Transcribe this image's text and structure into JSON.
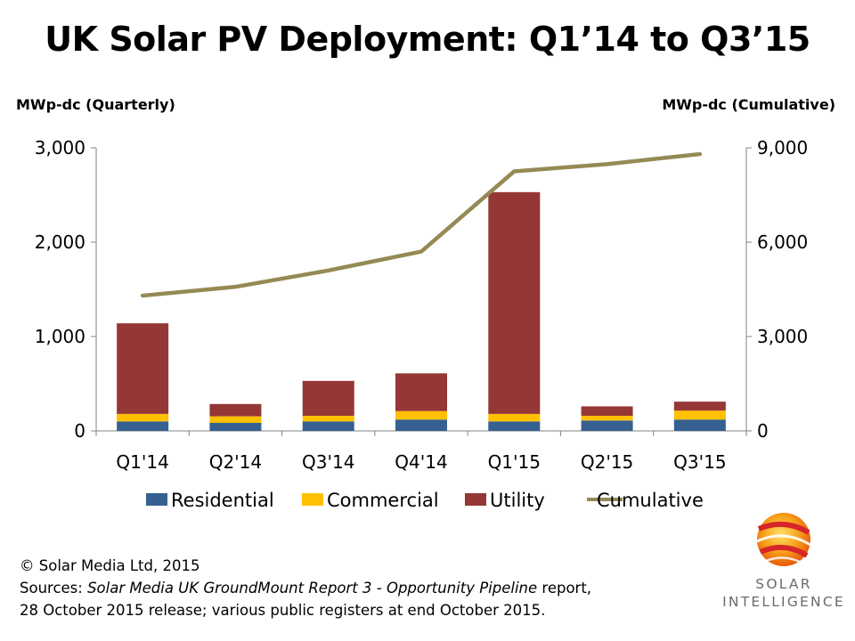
{
  "title": "UK Solar PV Deployment: Q1’14 to Q3’15",
  "chart_data": {
    "type": "bar",
    "title": "UK Solar PV Deployment: Q1’14 to Q3’15",
    "ylabel_left": "MWp-dc  (Quarterly)",
    "ylabel_right": "MWp-dc  (Cumulative)",
    "categories": [
      "Q1'14",
      "Q2'14",
      "Q3'14",
      "Q4'14",
      "Q1'15",
      "Q2'15",
      "Q3'15"
    ],
    "ylim_left": [
      0,
      3000
    ],
    "ylim_right": [
      0,
      9000
    ],
    "yticks_left": [
      "0",
      "1,000",
      "2,000",
      "3,000"
    ],
    "yticks_right": [
      "0",
      "3,000",
      "6,000",
      "9,000"
    ],
    "stacked": true,
    "series": [
      {
        "name": "Residential",
        "type": "bar",
        "axis": "left",
        "color": "#35608f",
        "values": [
          100,
          85,
          100,
          120,
          100,
          110,
          120
        ]
      },
      {
        "name": "Commercial",
        "type": "bar",
        "axis": "left",
        "color": "#ffc000",
        "values": [
          80,
          70,
          60,
          90,
          80,
          50,
          95
        ]
      },
      {
        "name": "Utility",
        "type": "bar",
        "axis": "left",
        "color": "#953735",
        "values": [
          960,
          130,
          370,
          400,
          2350,
          100,
          95
        ]
      },
      {
        "name": "Cumulative",
        "type": "line",
        "axis": "right",
        "color": "#948a54",
        "values": [
          4300,
          4580,
          5100,
          5700,
          8250,
          8480,
          8800
        ]
      }
    ],
    "legend_position": "bottom",
    "grid": false
  },
  "footer": {
    "copyright": "© Solar Media Ltd, 2015",
    "sources_prefix": "Sources: ",
    "sources_italic": "Solar Media UK GroundMount Report 3 - Opportunity Pipeline",
    "sources_suffix": " report,",
    "sources_line2": "28 October 2015 release; various public registers at end October 2015."
  },
  "logo": {
    "line1": "SOLAR",
    "line2": "INTELLIGENCE"
  }
}
